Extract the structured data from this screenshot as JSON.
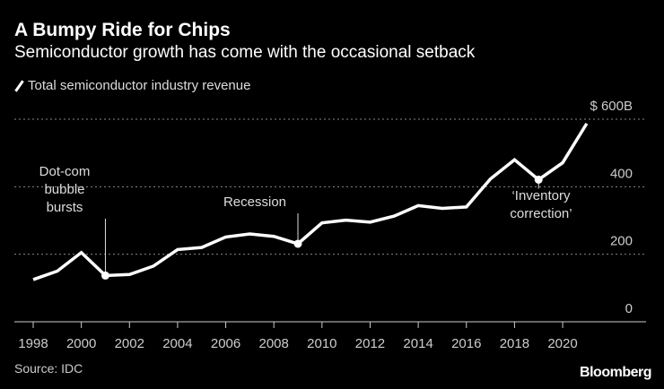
{
  "title": "A Bumpy Ride for Chips",
  "subtitle": "Semiconductor growth has come with the occasional setback",
  "source": "Source: IDC",
  "logo": "Bloomberg",
  "chart_data": {
    "type": "line",
    "title": "A Bumpy Ride for Chips",
    "subtitle": "Semiconductor growth has come with the occasional setback",
    "xlabel": "",
    "ylabel": "",
    "x": [
      1998,
      1999,
      2000,
      2001,
      2002,
      2003,
      2004,
      2005,
      2006,
      2007,
      2008,
      2009,
      2010,
      2011,
      2012,
      2013,
      2014,
      2015,
      2016,
      2017,
      2018,
      2019,
      2020,
      2021
    ],
    "series": [
      {
        "name": "Total semiconductor industry revenue",
        "color": "#ffffff",
        "values": [
          125,
          150,
          205,
          137,
          140,
          165,
          214,
          220,
          251,
          260,
          253,
          231,
          293,
          301,
          295,
          313,
          344,
          336,
          340,
          423,
          480,
          421,
          471,
          587
        ]
      }
    ],
    "ylim": [
      0,
      600
    ],
    "yticks": [
      0,
      200,
      400,
      600
    ],
    "ytick_labels": [
      "0",
      "200",
      "400",
      "$ 600B"
    ],
    "xticks": [
      1998,
      2000,
      2002,
      2004,
      2006,
      2008,
      2010,
      2012,
      2014,
      2016,
      2018,
      2020
    ],
    "xtick_labels": [
      "1998",
      "2000",
      "2002",
      "2004",
      "2006",
      "2008",
      "2010",
      "2012",
      "2014",
      "2016",
      "2018",
      "2020"
    ],
    "grid": "horizontal dotted",
    "legend": "top-left",
    "annotations": [
      {
        "x": 2001,
        "lines": [
          "Dot-com",
          "bubble",
          "bursts"
        ]
      },
      {
        "x": 2009,
        "lines": [
          "Recession"
        ]
      },
      {
        "x": 2019,
        "lines": [
          "‘Inventory",
          "correction’"
        ]
      }
    ],
    "background": "#000000"
  }
}
